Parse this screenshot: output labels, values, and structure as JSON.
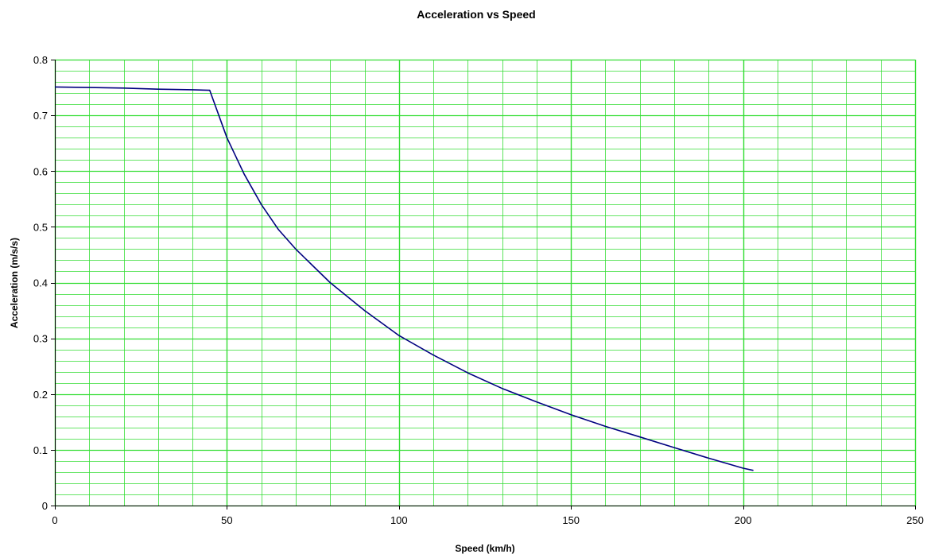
{
  "chart_data": {
    "type": "line",
    "title": "Acceleration vs Speed",
    "xlabel": "Speed (km/h)",
    "ylabel": "Acceleration (m/s/s)",
    "xlim": [
      0,
      250
    ],
    "ylim": [
      0,
      0.8
    ],
    "x_ticks": [
      "0",
      "50",
      "100",
      "150",
      "200",
      "250"
    ],
    "y_ticks": [
      "0",
      "0.1",
      "0.2",
      "0.3",
      "0.4",
      "0.5",
      "0.6",
      "0.7",
      "0.8"
    ],
    "x_major_step": 50,
    "x_minor_step": 10,
    "y_major_step": 0.1,
    "y_minor_step": 0.02,
    "grid": true,
    "legend": "none",
    "colors": {
      "background": "#ffffff",
      "grid": "#33dd33",
      "axis": "#000000",
      "series": "#000080"
    },
    "series": [
      {
        "x": [
          0,
          10,
          20,
          30,
          40,
          45,
          50,
          55,
          60,
          65,
          70,
          75,
          80,
          90,
          100,
          110,
          120,
          130,
          140,
          150,
          160,
          170,
          180,
          190,
          200,
          203
        ],
        "y": [
          0.751,
          0.75,
          0.749,
          0.747,
          0.746,
          0.745,
          0.66,
          0.595,
          0.54,
          0.495,
          0.46,
          0.43,
          0.4,
          0.35,
          0.305,
          0.27,
          0.238,
          0.21,
          0.186,
          0.163,
          0.142,
          0.123,
          0.104,
          0.085,
          0.067,
          0.063
        ]
      }
    ]
  }
}
